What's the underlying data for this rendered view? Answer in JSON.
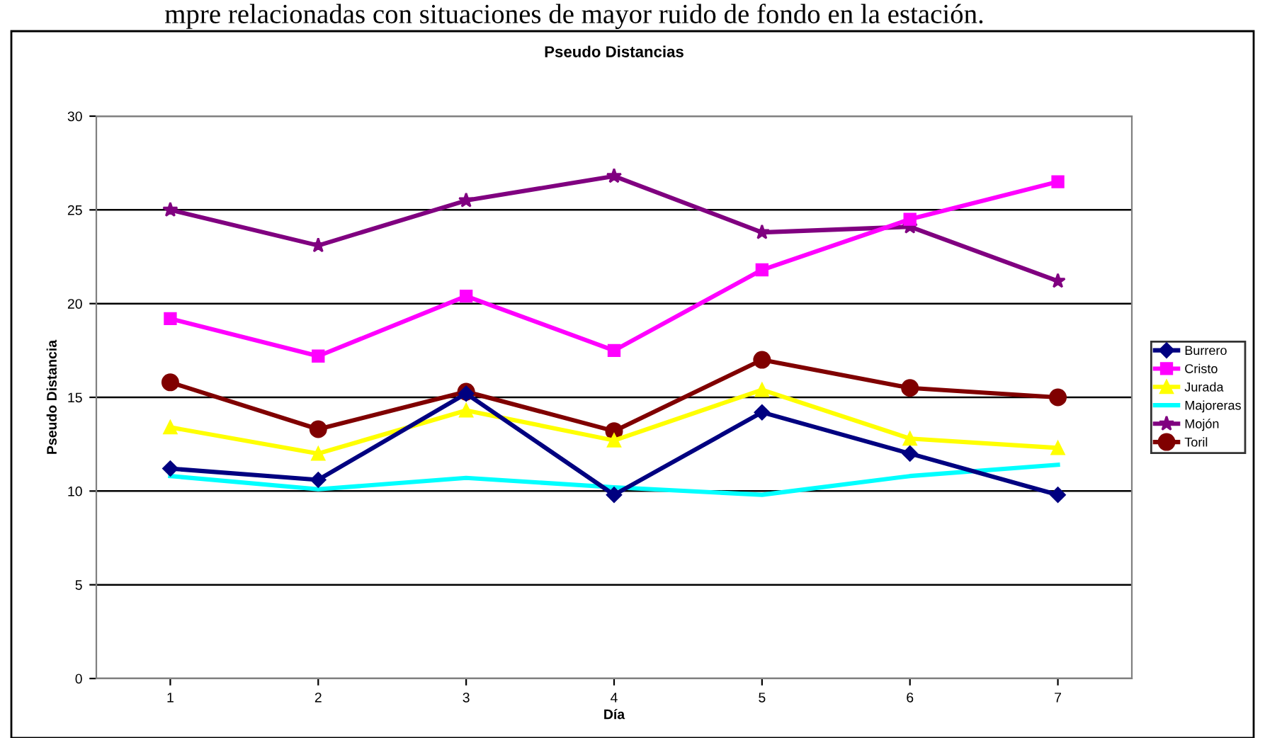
{
  "chart_data": {
    "type": "line",
    "title": "Pseudo Distancias",
    "xlabel": "Día",
    "ylabel": "Pseudo Distancia",
    "annotations": [
      "mpre relacionadas con situaciones de mayor ruido de fondo en la estación."
    ],
    "categories": [
      "1",
      "2",
      "3",
      "4",
      "5",
      "6",
      "7"
    ],
    "series": [
      {
        "name": "Burrero",
        "color": "#000080",
        "marker": "diamond",
        "values": [
          11.2,
          10.6,
          15.2,
          9.8,
          14.2,
          12.0,
          9.8
        ]
      },
      {
        "name": "Cristo",
        "color": "#ff00ff",
        "marker": "square",
        "values": [
          19.2,
          17.2,
          20.4,
          17.5,
          21.8,
          24.5,
          26.5
        ]
      },
      {
        "name": "Jurada",
        "color": "#ffff00",
        "marker": "triangle",
        "values": [
          13.4,
          12.0,
          14.3,
          12.7,
          15.4,
          12.8,
          12.3
        ]
      },
      {
        "name": "Majoreras",
        "color": "#00ffff",
        "marker": "none",
        "values": [
          10.8,
          10.1,
          10.7,
          10.2,
          9.8,
          10.8,
          11.4
        ]
      },
      {
        "name": "Mojón",
        "color": "#800080",
        "marker": "star",
        "values": [
          25.0,
          23.1,
          25.5,
          26.8,
          23.8,
          24.1,
          21.2
        ]
      },
      {
        "name": "Toril",
        "color": "#800000",
        "marker": "circle",
        "values": [
          15.8,
          13.3,
          15.3,
          13.2,
          17.0,
          15.5,
          15.0
        ]
      }
    ],
    "ylim": [
      0,
      30
    ],
    "yticks": [
      0,
      5,
      10,
      15,
      20,
      25,
      30
    ],
    "grid": "y",
    "legend": "right"
  }
}
